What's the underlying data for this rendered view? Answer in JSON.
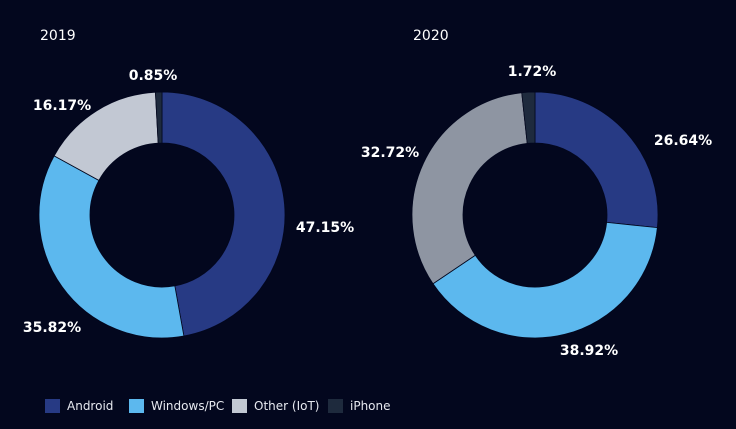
{
  "colors": {
    "background": "#03071e",
    "hole": "#03071e",
    "text": "#ffffff"
  },
  "legend": {
    "items": [
      {
        "label": "Android",
        "color": "#273a84"
      },
      {
        "label": "Windows/PC",
        "color": "#5cb8ee"
      },
      {
        "label": "Other (IoT)",
        "color_2019": "#c2c8d3",
        "color": "#c2c8d3"
      },
      {
        "label": "iPhone",
        "color": "#1e2a3d"
      }
    ]
  },
  "chart_data": [
    {
      "type": "pie",
      "title": "2019",
      "categories": [
        "Android",
        "Windows/PC",
        "Other (IoT)",
        "iPhone"
      ],
      "values": [
        47.15,
        35.82,
        16.17,
        0.85
      ],
      "value_labels": [
        "47.15%",
        "35.82%",
        "16.17%",
        "0.85%"
      ],
      "colors": [
        "#273a84",
        "#5cb8ee",
        "#c2c8d3",
        "#1e2a3d"
      ],
      "donut": true
    },
    {
      "type": "pie",
      "title": "2020",
      "categories": [
        "Android",
        "Windows/PC",
        "Other (IoT)",
        "iPhone"
      ],
      "values": [
        26.64,
        38.92,
        32.72,
        1.72
      ],
      "value_labels": [
        "26.64%",
        "38.92%",
        "32.72%",
        "1.72%"
      ],
      "colors": [
        "#273a84",
        "#5cb8ee",
        "#8e95a2",
        "#1e2a3d"
      ],
      "donut": true
    }
  ]
}
